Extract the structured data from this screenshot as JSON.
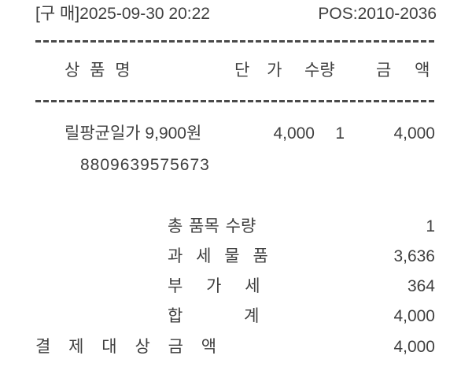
{
  "header": {
    "purchase_datetime": "[구 매]2025-09-30 20:22",
    "pos": "POS:2010-2036"
  },
  "columns": {
    "name": "상 품 명",
    "unit_price": "단 가",
    "qty": "수량",
    "amount": "금 액"
  },
  "item": {
    "name": "릴팡균일가 9,900원",
    "unit_price": "4,000",
    "qty": "1",
    "amount": "4,000",
    "barcode": "8809639575673"
  },
  "totals": {
    "rows": [
      {
        "label": "총 품목 수량",
        "value": "1"
      },
      {
        "label": "과 세 물 품",
        "value": "3,636"
      },
      {
        "label": "부 가 세",
        "value": "364"
      },
      {
        "label": "합 계",
        "value": "4,000"
      },
      {
        "label": "결 제 대 상 금 액",
        "value": "4,000"
      }
    ]
  },
  "colors": {
    "text": "#3f3f3f",
    "background": "#ffffff"
  }
}
